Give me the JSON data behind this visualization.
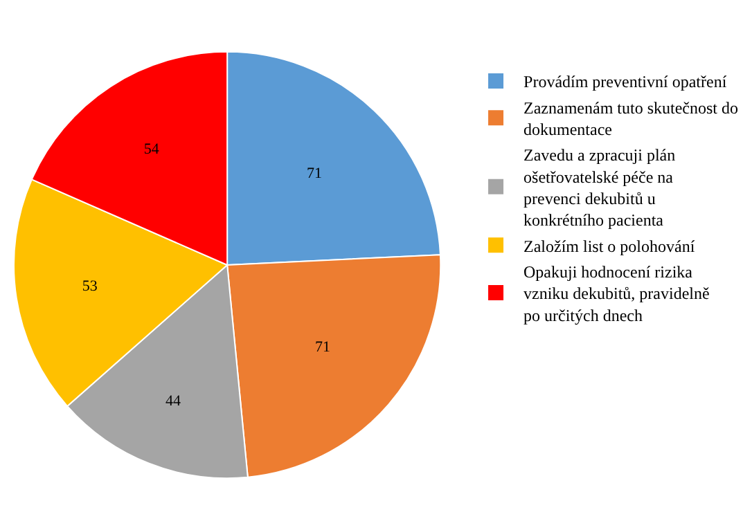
{
  "chart_data": {
    "type": "pie",
    "categories": [
      "Provádím preventivní opatření",
      "Zaznamenám tuto skutečnost do dokumentace",
      "Zavedu a zpracuji plán ošetřovatelské péče na prevenci dekubitů u konkrétního pacienta",
      "Založím list o polohování",
      "Opakuji hodnocení rizika vzniku dekubitů, pravidelně po určitých dnech"
    ],
    "values": [
      71,
      71,
      44,
      53,
      54
    ],
    "colors": [
      "#5b9bd5",
      "#ed7d31",
      "#a5a5a5",
      "#ffc000",
      "#ff0000"
    ],
    "data_labels": true,
    "legend": "right"
  }
}
